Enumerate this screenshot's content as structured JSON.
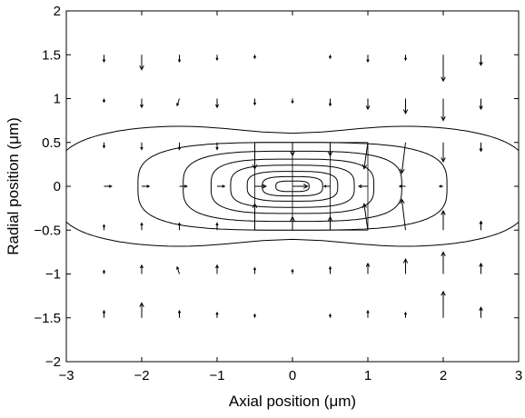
{
  "chart_data": {
    "type": "vector-field-contour",
    "title": "",
    "xlabel": "Axial position (μm)",
    "ylabel": "Radial position (μm)",
    "xlim": [
      -3,
      3
    ],
    "ylim": [
      -2,
      2
    ],
    "xticks": [
      -3,
      -2,
      -1,
      0,
      1,
      2,
      3
    ],
    "yticks": [
      -2,
      -1.5,
      -1,
      -0.5,
      0,
      0.5,
      1,
      1.5,
      2
    ],
    "xtick_labels": [
      "−3",
      "−2",
      "−1",
      "0",
      "1",
      "2",
      "3"
    ],
    "ytick_labels": [
      "−2",
      "−1.5",
      "−1",
      "−0.5",
      "0",
      "0.5",
      "1",
      "1.5",
      "2"
    ],
    "grid": false,
    "contours": [
      {
        "level": 1,
        "x0": 0.0,
        "rx": 3.15,
        "ry": 0.72,
        "waist": 0.62
      },
      {
        "level": 2,
        "x0": 0.0,
        "rx": 2.05,
        "ry": 0.5,
        "waist": 0.0
      },
      {
        "level": 3,
        "x0": 0.0,
        "rx": 1.45,
        "ry": 0.4,
        "waist": 0.0
      },
      {
        "level": 4,
        "x0": 0.0,
        "rx": 1.08,
        "ry": 0.31,
        "waist": 0.0
      },
      {
        "level": 5,
        "x0": 0.0,
        "rx": 0.82,
        "ry": 0.24,
        "waist": 0.0
      },
      {
        "level": 6,
        "x0": 0.0,
        "rx": 0.6,
        "ry": 0.17,
        "waist": 0.0
      },
      {
        "level": 7,
        "x0": 0.0,
        "rx": 0.4,
        "ry": 0.11,
        "waist": 0.0
      },
      {
        "level": 8,
        "x0": 0.0,
        "rx": 0.22,
        "ry": 0.06,
        "waist": 0.0
      }
    ],
    "field_lines_x": [
      -0.5,
      0.0,
      0.5,
      1.0
    ],
    "field_lines_y": [
      -0.5,
      0.5
    ],
    "vectors": [
      {
        "x": -2.5,
        "y": 1.5,
        "u": 0.0,
        "v": -0.08
      },
      {
        "x": -2.0,
        "y": 1.5,
        "u": 0.0,
        "v": -0.17
      },
      {
        "x": -1.5,
        "y": 1.5,
        "u": 0.0,
        "v": -0.08
      },
      {
        "x": -1.0,
        "y": 1.5,
        "u": 0.0,
        "v": -0.06
      },
      {
        "x": -0.5,
        "y": 1.5,
        "u": 0.0,
        "v": -0.04
      },
      {
        "x": 0.5,
        "y": 1.5,
        "u": 0.0,
        "v": -0.04
      },
      {
        "x": 1.0,
        "y": 1.5,
        "u": 0.0,
        "v": -0.08
      },
      {
        "x": 1.5,
        "y": 1.5,
        "u": 0.0,
        "v": -0.06
      },
      {
        "x": 2.0,
        "y": 1.5,
        "u": 0.0,
        "v": -0.3
      },
      {
        "x": 2.5,
        "y": 1.5,
        "u": 0.0,
        "v": -0.12
      },
      {
        "x": -2.5,
        "y": 1.0,
        "u": 0.0,
        "v": -0.04
      },
      {
        "x": -2.0,
        "y": 1.0,
        "u": 0.0,
        "v": -0.1
      },
      {
        "x": -1.5,
        "y": 1.0,
        "u": -0.03,
        "v": -0.08
      },
      {
        "x": -1.0,
        "y": 1.0,
        "u": 0.0,
        "v": -0.1
      },
      {
        "x": -0.5,
        "y": 1.0,
        "u": 0.0,
        "v": -0.07
      },
      {
        "x": 0.0,
        "y": 1.0,
        "u": 0.0,
        "v": -0.05
      },
      {
        "x": 0.5,
        "y": 1.0,
        "u": 0.0,
        "v": -0.08
      },
      {
        "x": 1.0,
        "y": 1.0,
        "u": 0.0,
        "v": -0.12
      },
      {
        "x": 1.5,
        "y": 1.0,
        "u": 0.0,
        "v": -0.17
      },
      {
        "x": 2.0,
        "y": 1.0,
        "u": 0.0,
        "v": -0.25
      },
      {
        "x": 2.5,
        "y": 1.0,
        "u": 0.0,
        "v": -0.12
      },
      {
        "x": -2.5,
        "y": 0.5,
        "u": 0.0,
        "v": -0.06
      },
      {
        "x": -2.0,
        "y": 0.5,
        "u": 0.0,
        "v": -0.08
      },
      {
        "x": -1.5,
        "y": 0.5,
        "u": 0.0,
        "v": -0.08
      },
      {
        "x": -1.0,
        "y": 0.5,
        "u": 0.0,
        "v": -0.08
      },
      {
        "x": -0.5,
        "y": 0.5,
        "u": 0.0,
        "v": -0.3
      },
      {
        "x": 0.0,
        "y": 0.5,
        "u": 0.0,
        "v": -0.15
      },
      {
        "x": 0.5,
        "y": 0.5,
        "u": 0.0,
        "v": -0.15
      },
      {
        "x": 1.0,
        "y": 0.5,
        "u": -0.05,
        "v": -0.3
      },
      {
        "x": 1.5,
        "y": 0.5,
        "u": -0.05,
        "v": -0.35
      },
      {
        "x": 2.0,
        "y": 0.5,
        "u": 0.0,
        "v": -0.22
      },
      {
        "x": 2.5,
        "y": 0.5,
        "u": 0.0,
        "v": -0.1
      },
      {
        "x": -2.5,
        "y": 0.0,
        "u": 0.1,
        "v": 0.0
      },
      {
        "x": -2.0,
        "y": 0.0,
        "u": 0.1,
        "v": 0.0
      },
      {
        "x": -1.5,
        "y": 0.0,
        "u": 0.1,
        "v": 0.0
      },
      {
        "x": -1.0,
        "y": 0.0,
        "u": 0.1,
        "v": 0.0
      },
      {
        "x": -0.5,
        "y": 0.0,
        "u": 0.15,
        "v": 0.0
      },
      {
        "x": 0.0,
        "y": 0.0,
        "u": 0.2,
        "v": 0.0
      },
      {
        "x": 0.5,
        "y": 0.0,
        "u": -0.08,
        "v": 0.0
      },
      {
        "x": 1.0,
        "y": 0.0,
        "u": -0.12,
        "v": 0.0
      },
      {
        "x": 1.5,
        "y": 0.0,
        "u": -0.08,
        "v": 0.0
      },
      {
        "x": 2.0,
        "y": 0.0,
        "u": -0.05,
        "v": 0.0
      },
      {
        "x": -2.5,
        "y": -0.5,
        "u": 0.0,
        "v": 0.06
      },
      {
        "x": -2.0,
        "y": -0.5,
        "u": 0.0,
        "v": 0.08
      },
      {
        "x": -1.5,
        "y": -0.5,
        "u": 0.0,
        "v": 0.08
      },
      {
        "x": -1.0,
        "y": -0.5,
        "u": 0.0,
        "v": 0.08
      },
      {
        "x": -0.5,
        "y": -0.5,
        "u": 0.0,
        "v": 0.3
      },
      {
        "x": 0.0,
        "y": -0.5,
        "u": 0.0,
        "v": 0.15
      },
      {
        "x": 0.5,
        "y": -0.5,
        "u": 0.0,
        "v": 0.15
      },
      {
        "x": 1.0,
        "y": -0.5,
        "u": -0.05,
        "v": 0.3
      },
      {
        "x": 1.5,
        "y": -0.5,
        "u": -0.05,
        "v": 0.35
      },
      {
        "x": 2.0,
        "y": -0.5,
        "u": 0.0,
        "v": 0.22
      },
      {
        "x": 2.5,
        "y": -0.5,
        "u": 0.0,
        "v": 0.1
      },
      {
        "x": -2.5,
        "y": -1.0,
        "u": 0.0,
        "v": 0.04
      },
      {
        "x": -2.0,
        "y": -1.0,
        "u": 0.0,
        "v": 0.1
      },
      {
        "x": -1.5,
        "y": -1.0,
        "u": -0.03,
        "v": 0.08
      },
      {
        "x": -1.0,
        "y": -1.0,
        "u": 0.0,
        "v": 0.1
      },
      {
        "x": -0.5,
        "y": -1.0,
        "u": 0.0,
        "v": 0.07
      },
      {
        "x": 0.0,
        "y": -1.0,
        "u": 0.0,
        "v": 0.05
      },
      {
        "x": 0.5,
        "y": -1.0,
        "u": 0.0,
        "v": 0.08
      },
      {
        "x": 1.0,
        "y": -1.0,
        "u": 0.0,
        "v": 0.12
      },
      {
        "x": 1.5,
        "y": -1.0,
        "u": 0.0,
        "v": 0.17
      },
      {
        "x": 2.0,
        "y": -1.0,
        "u": 0.0,
        "v": 0.25
      },
      {
        "x": 2.5,
        "y": -1.0,
        "u": 0.0,
        "v": 0.12
      },
      {
        "x": -2.5,
        "y": -1.5,
        "u": 0.0,
        "v": 0.08
      },
      {
        "x": -2.0,
        "y": -1.5,
        "u": 0.0,
        "v": 0.17
      },
      {
        "x": -1.5,
        "y": -1.5,
        "u": 0.0,
        "v": 0.08
      },
      {
        "x": -1.0,
        "y": -1.5,
        "u": 0.0,
        "v": 0.06
      },
      {
        "x": -0.5,
        "y": -1.5,
        "u": 0.0,
        "v": 0.04
      },
      {
        "x": 0.5,
        "y": -1.5,
        "u": 0.0,
        "v": 0.04
      },
      {
        "x": 1.0,
        "y": -1.5,
        "u": 0.0,
        "v": 0.08
      },
      {
        "x": 1.5,
        "y": -1.5,
        "u": 0.0,
        "v": 0.06
      },
      {
        "x": 2.0,
        "y": -1.5,
        "u": 0.0,
        "v": 0.3
      },
      {
        "x": 2.5,
        "y": -1.5,
        "u": 0.0,
        "v": 0.12
      }
    ],
    "colors": {
      "line": "#000000",
      "background": "#ffffff"
    }
  }
}
